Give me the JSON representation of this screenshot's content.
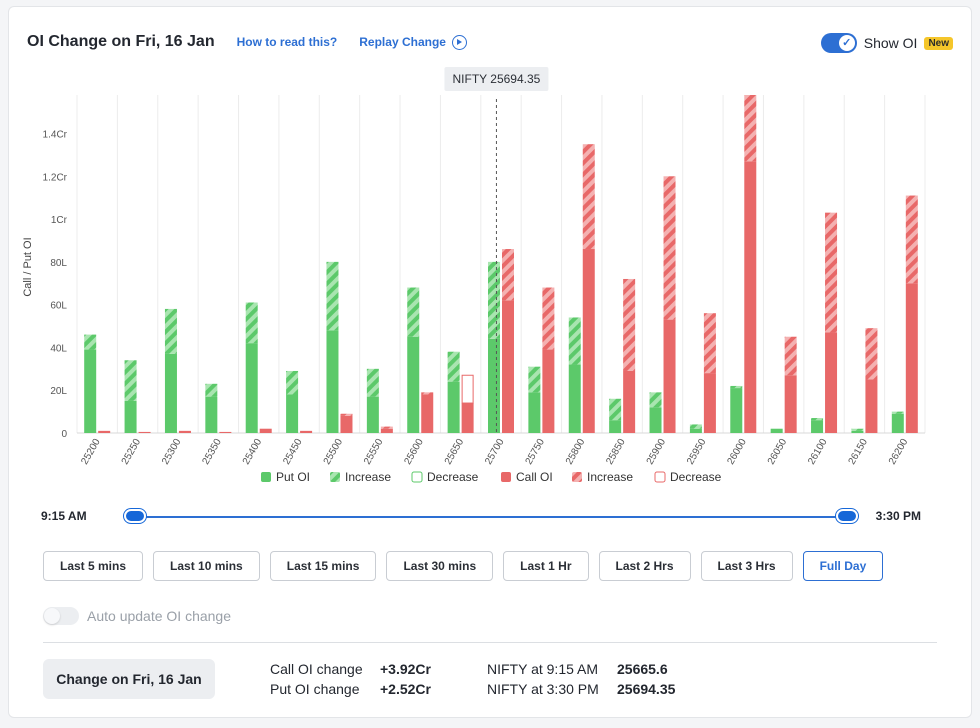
{
  "header": {
    "title": "OI Change on Fri, 16 Jan",
    "how_to_read": "How to read this?",
    "replay": "Replay Change",
    "show_oi": "Show OI",
    "new_badge": "New"
  },
  "colors": {
    "put_green": "#5cc96a",
    "put_light": "#a9e5b0",
    "call_red": "#e86868",
    "call_light": "#f4b1b1",
    "accent_blue": "#2d6fd3"
  },
  "chart_data": {
    "type": "bar",
    "ylabel": "Call / Put OI",
    "yticks": [
      "0",
      "20L",
      "40L",
      "60L",
      "80L",
      "1Cr",
      "1.2Cr",
      "1.4Cr"
    ],
    "ylim": [
      0,
      158
    ],
    "unit": "Lakh",
    "categories": [
      "25200",
      "25250",
      "25300",
      "25350",
      "25400",
      "25450",
      "25500",
      "25550",
      "25600",
      "25650",
      "25700",
      "25750",
      "25800",
      "25850",
      "25900",
      "25950",
      "26000",
      "26050",
      "26100",
      "26150",
      "26200"
    ],
    "spot_marker": {
      "label": "NIFTY 25694.35",
      "value": 25694.35
    },
    "put_oi": [
      39,
      15,
      37,
      17,
      42,
      18,
      48,
      17,
      45,
      24,
      44,
      19,
      32,
      6,
      12,
      2,
      21,
      2,
      6,
      1,
      9
    ],
    "put_increase": [
      7,
      19,
      21,
      6,
      19,
      11,
      32,
      13,
      23,
      14,
      36,
      12,
      22,
      10,
      7,
      2,
      1,
      0,
      1,
      1,
      1
    ],
    "put_decrease": [
      0,
      0,
      0,
      0,
      0,
      0,
      0,
      0,
      0,
      0,
      0,
      0,
      0,
      0,
      0,
      0,
      0,
      0,
      0,
      0,
      0
    ],
    "call_oi": [
      1,
      0.5,
      1,
      0.5,
      2,
      1,
      8,
      2,
      18,
      14,
      62,
      39,
      86,
      29,
      53,
      28,
      127,
      27,
      47,
      25,
      70
    ],
    "call_increase": [
      0,
      0,
      0,
      0,
      0,
      0,
      1,
      1,
      1,
      0,
      24,
      29,
      49,
      43,
      67,
      28,
      31,
      18,
      56,
      24,
      41
    ],
    "call_decrease": [
      0,
      0,
      0,
      0,
      0,
      0,
      0,
      0,
      0,
      13,
      0,
      0,
      0,
      0,
      0,
      0,
      0,
      0,
      0,
      0,
      0
    ],
    "legend": [
      {
        "label": "Put OI",
        "style": "solid",
        "color": "#5cc96a"
      },
      {
        "label": "Increase",
        "style": "hatch",
        "color": "#5cc96a"
      },
      {
        "label": "Decrease",
        "style": "outline",
        "color": "#5cc96a"
      },
      {
        "label": "Call OI",
        "style": "solid",
        "color": "#e86868"
      },
      {
        "label": "Increase",
        "style": "hatch",
        "color": "#e86868"
      },
      {
        "label": "Decrease",
        "style": "outline",
        "color": "#e86868"
      }
    ],
    "legend_position": "bottom",
    "grid": "vertical"
  },
  "slider": {
    "start": "9:15 AM",
    "end": "3:30 PM",
    "range_start_fraction": 0,
    "range_end_fraction": 1
  },
  "tabs": [
    {
      "label": "Last 5 mins",
      "active": false
    },
    {
      "label": "Last 10 mins",
      "active": false
    },
    {
      "label": "Last 15 mins",
      "active": false
    },
    {
      "label": "Last 30 mins",
      "active": false
    },
    {
      "label": "Last 1 Hr",
      "active": false
    },
    {
      "label": "Last 2 Hrs",
      "active": false
    },
    {
      "label": "Last 3 Hrs",
      "active": false
    },
    {
      "label": "Full Day",
      "active": true
    }
  ],
  "auto_update": {
    "label": "Auto update OI change",
    "enabled": false
  },
  "summary": {
    "button": "Change on Fri, 16 Jan",
    "call_label": "Call OI change",
    "call_value": "+3.92Cr",
    "put_label": "Put OI change",
    "put_value": "+2.52Cr",
    "nifty_open_label": "NIFTY at 9:15 AM",
    "nifty_open_value": "25665.6",
    "nifty_close_label": "NIFTY at 3:30 PM",
    "nifty_close_value": "25694.35"
  }
}
